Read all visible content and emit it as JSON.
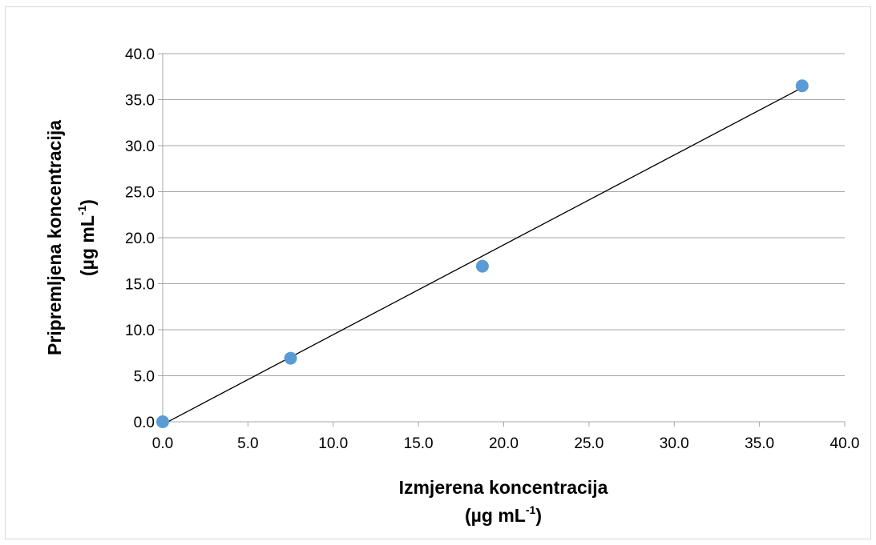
{
  "chart_data": {
    "type": "scatter",
    "title": "",
    "xlabel": {
      "line1": "Izmjerena koncentracija",
      "line2_prefix": "(µg mL",
      "line2_sup": "-1",
      "line2_suffix": ")"
    },
    "ylabel": {
      "line1": "Pripremljena koncentracija",
      "line2_prefix": "(µg mL",
      "line2_sup": "-1",
      "line2_suffix": ")"
    },
    "xlim": [
      0,
      40
    ],
    "ylim": [
      0,
      40
    ],
    "x_ticks": [
      "0.0",
      "5.0",
      "10.0",
      "15.0",
      "20.0",
      "25.0",
      "30.0",
      "35.0",
      "40.0"
    ],
    "y_ticks": [
      "0.0",
      "5.0",
      "10.0",
      "15.0",
      "20.0",
      "25.0",
      "30.0",
      "35.0",
      "40.0"
    ],
    "grid": "horizontal",
    "legend": "none",
    "series": [
      {
        "x": [
          0.0,
          7.5,
          18.75,
          37.5
        ],
        "y": [
          0.0,
          6.9,
          16.9,
          36.5
        ]
      }
    ],
    "trendline": {
      "x": [
        0.0,
        37.5
      ],
      "y": [
        -0.3,
        36.3
      ]
    },
    "colors": {
      "marker": "#5b9bd5",
      "trendline": "#000000",
      "grid": "#a6a6a6",
      "axis": "#a6a6a6"
    }
  }
}
